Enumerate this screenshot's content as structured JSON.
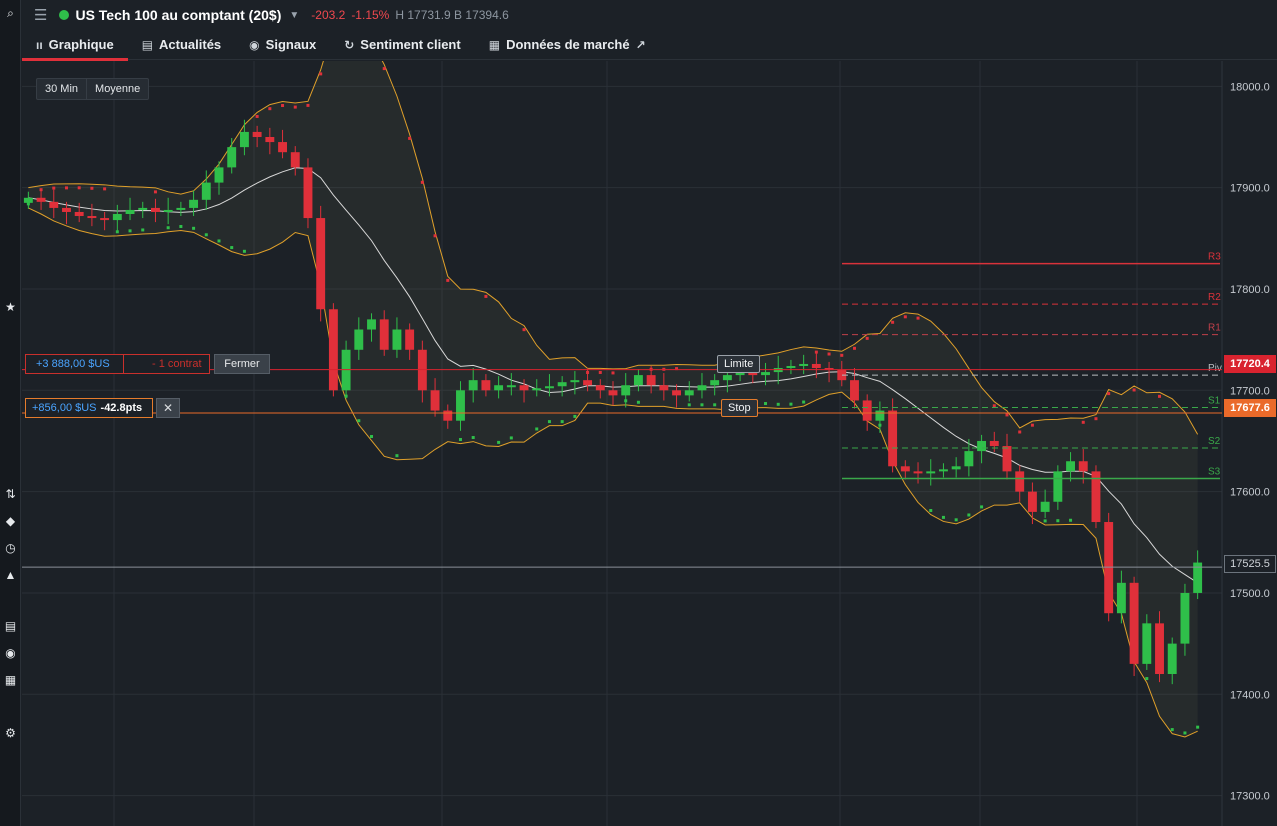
{
  "header": {
    "instrument": "US Tech 100 au comptant (20$)",
    "change": "-203.2",
    "change_pct": "-1.15%",
    "high_low": "H 17731.9 B 17394.6"
  },
  "tabs": [
    {
      "label": "Graphique",
      "icon": "chart-icon"
    },
    {
      "label": "Actualités",
      "icon": "news-icon"
    },
    {
      "label": "Signaux",
      "icon": "signal-icon"
    },
    {
      "label": "Sentiment client",
      "icon": "sentiment-icon"
    },
    {
      "label": "Données de marché",
      "icon": "calendar-icon"
    }
  ],
  "toolbar": {
    "timeframe": "30 Min",
    "indicator": "Moyenne"
  },
  "positions": {
    "p1_value": "+3 888,00 $US",
    "p1_qty": "- 1 contrat",
    "close_label": "Fermer",
    "p2_value": "+856,00 $US",
    "p2_pts": "-42.8pts",
    "remove_label": "✕"
  },
  "orders": {
    "limit_label": "Limite",
    "stop_label": "Stop"
  },
  "price_tags": {
    "red": "17720.4",
    "orange": "17677.6",
    "current": "17525.5"
  },
  "pivot_labels": {
    "r3": "R3",
    "r2": "R2",
    "r1": "R1",
    "piv": "Piv",
    "s1": "S1",
    "s2": "S2",
    "s3": "S3"
  },
  "colors": {
    "up": "#2fbf4a",
    "down": "#e0303a",
    "band": "#e0a02a",
    "bg": "#1c2127",
    "grid": "#2a3037"
  },
  "chart_data": {
    "type": "candlestick",
    "title": "",
    "xlabel": "",
    "ylabel": "",
    "ylim": [
      17270,
      18025
    ],
    "y_ticks": [
      "18000.0",
      "17900.0",
      "17800.0",
      "17700.0",
      "17600.0",
      "17500.0",
      "17400.0",
      "17300.0"
    ],
    "pivots": {
      "R3": 17825,
      "R2": 17785,
      "R1": 17755,
      "Piv": 17715,
      "S1": 17683,
      "S2": 17643,
      "S3": 17613
    },
    "position_lines": {
      "entry_red": 17720.4,
      "entry_orange": 17677.6,
      "current": 17525.5
    },
    "closes": [
      17890,
      17886,
      17880,
      17876,
      17872,
      17870,
      17868,
      17874,
      17878,
      17880,
      17876,
      17878,
      17880,
      17888,
      17905,
      17920,
      17940,
      17955,
      17950,
      17945,
      17935,
      17920,
      17870,
      17780,
      17700,
      17740,
      17760,
      17770,
      17740,
      17760,
      17740,
      17700,
      17680,
      17670,
      17700,
      17710,
      17700,
      17705,
      17705,
      17700,
      17702,
      17704,
      17708,
      17710,
      17705,
      17700,
      17695,
      17705,
      17715,
      17705,
      17700,
      17695,
      17700,
      17705,
      17710,
      17715,
      17720,
      17715,
      17718,
      17722,
      17724,
      17726,
      17722,
      17720,
      17710,
      17690,
      17670,
      17680,
      17625,
      17620,
      17618,
      17620,
      17622,
      17625,
      17640,
      17650,
      17645,
      17620,
      17600,
      17580,
      17590,
      17620,
      17630,
      17620,
      17570,
      17480,
      17510,
      17430,
      17470,
      17420,
      17450,
      17500,
      17530
    ]
  }
}
